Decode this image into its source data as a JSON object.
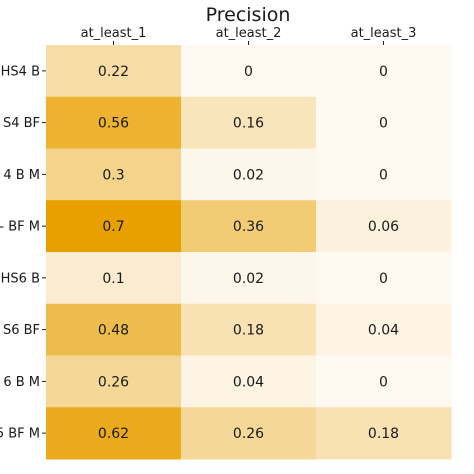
{
  "chart_data": {
    "type": "heatmap",
    "title": "Precision",
    "xlabel": "",
    "ylabel": "",
    "columns": [
      "at_least_1",
      "at_least_2",
      "at_least_3"
    ],
    "rows": [
      "HS4 B",
      "S4 BF",
      "4 B M",
      "- BF M",
      "HS6 B",
      "S6 BF",
      "6 B M",
      "5 BF M"
    ],
    "values": [
      [
        0.22,
        0,
        0
      ],
      [
        0.56,
        0.16,
        0
      ],
      [
        0.3,
        0.02,
        0
      ],
      [
        0.7,
        0.36,
        0.06
      ],
      [
        0.1,
        0.02,
        0
      ],
      [
        0.48,
        0.18,
        0.04
      ],
      [
        0.26,
        0.04,
        0
      ],
      [
        0.62,
        0.26,
        0.18
      ]
    ],
    "value_labels": [
      [
        "0.22",
        "0",
        "0"
      ],
      [
        "0.56",
        "0.16",
        "0"
      ],
      [
        "0.3",
        "0.02",
        "0"
      ],
      [
        "0.7",
        "0.36",
        "0.06"
      ],
      [
        "0.1",
        "0.02",
        "0"
      ],
      [
        "0.48",
        "0.18",
        "0.04"
      ],
      [
        "0.26",
        "0.04",
        "0"
      ],
      [
        "0.62",
        "0.26",
        "0.18"
      ]
    ],
    "color_range": [
      0,
      0.7
    ],
    "colors": {
      "low": "#fef9f1",
      "high": "#e7a000"
    },
    "x_axis_position": "top",
    "grid": false
  }
}
